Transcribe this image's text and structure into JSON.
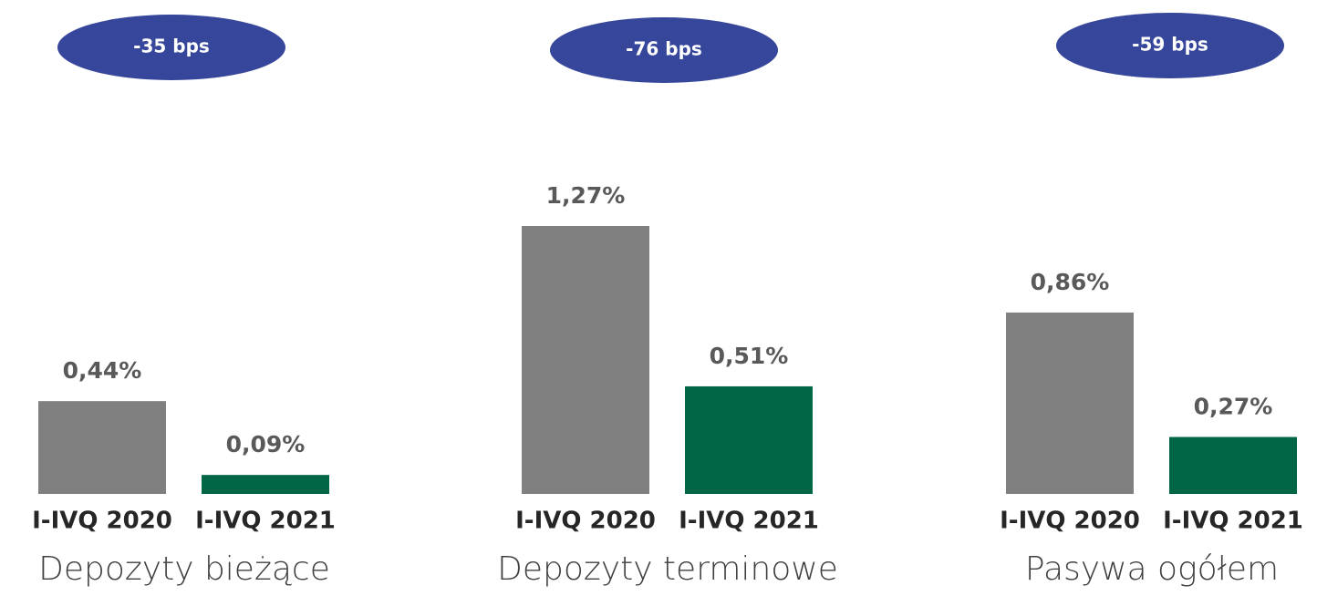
{
  "chart_data": [
    {
      "type": "bar",
      "title": "Depozyty bieżące",
      "annotation": "-35 bps",
      "categories": [
        "I-IVQ 2020",
        "I-IVQ 2021"
      ],
      "values": [
        0.44,
        0.09
      ],
      "value_labels": [
        "0,44%",
        "0,09%"
      ],
      "colors": [
        "#808080",
        "#006646"
      ]
    },
    {
      "type": "bar",
      "title": "Depozyty terminowe",
      "annotation": "-76 bps",
      "categories": [
        "I-IVQ 2020",
        "I-IVQ 2021"
      ],
      "values": [
        1.27,
        0.51
      ],
      "value_labels": [
        "1,27%",
        "0,51%"
      ],
      "colors": [
        "#808080",
        "#006646"
      ]
    },
    {
      "type": "bar",
      "title": "Pasywa ogółem",
      "annotation": "-59 bps",
      "categories": [
        "I-IVQ 2020",
        "I-IVQ 2021"
      ],
      "values": [
        0.86,
        0.27
      ],
      "value_labels": [
        "0,86%",
        "0,27%"
      ],
      "colors": [
        "#808080",
        "#006646"
      ]
    }
  ]
}
